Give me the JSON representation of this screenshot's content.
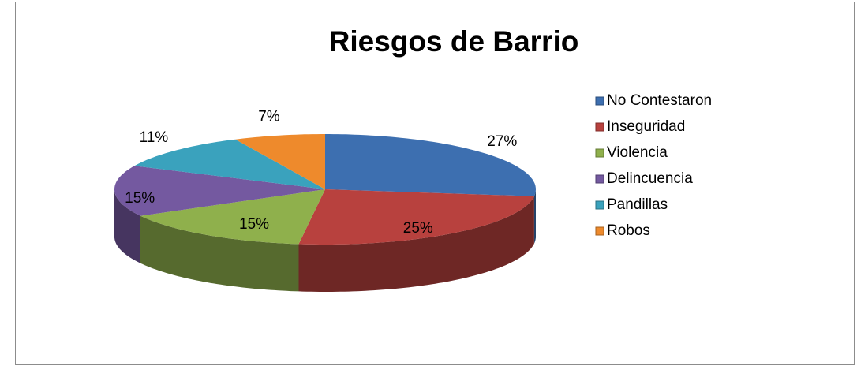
{
  "chart_data": {
    "type": "pie3d",
    "title": "Riesgos de Barrio",
    "categories": [
      "No Contestaron",
      "Inseguridad",
      "Violencia",
      "Delincuencia",
      "Pandillas",
      "Robos"
    ],
    "values": [
      27,
      25,
      15,
      15,
      11,
      7
    ],
    "value_labels": [
      "27%",
      "25%",
      "15%",
      "15%",
      "11%",
      "7%"
    ],
    "colors": [
      "#3d6fb0",
      "#b8413e",
      "#8fb04c",
      "#7459a0",
      "#3aa2bd",
      "#ee8a2c"
    ],
    "legend": "right"
  }
}
